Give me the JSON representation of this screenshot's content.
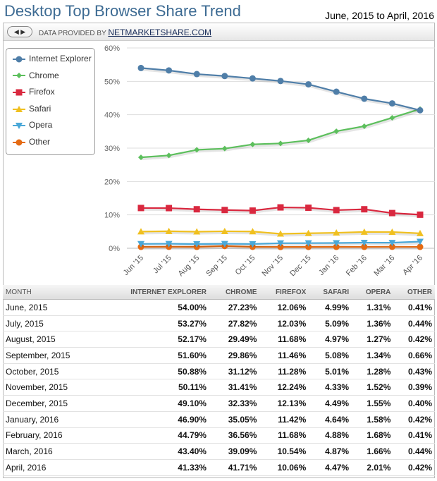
{
  "title": "Desktop Top Browser Share Trend",
  "range": "June, 2015 to April, 2016",
  "provided_by": "DATA PROVIDED BY",
  "provider": "NETMARKETSHARE.COM",
  "nav_icons": [
    "arrow-left-icon",
    "arrow-right-icon"
  ],
  "chart_data": {
    "type": "line",
    "categories": [
      "Jun '15",
      "Jul '15",
      "Aug '15",
      "Sep '15",
      "Oct '15",
      "Nov '15",
      "Dec '15",
      "Jan '16",
      "Feb '16",
      "Mar '16",
      "Apr '16"
    ],
    "ylim": [
      0,
      60
    ],
    "yticks": [
      "0%",
      "10%",
      "20%",
      "30%",
      "40%",
      "50%",
      "60%"
    ],
    "grid": true,
    "legend": "top-left",
    "series": [
      {
        "name": "Internet Explorer",
        "color": "#4f7ea8",
        "marker": "circle",
        "values": [
          54.0,
          53.27,
          52.17,
          51.6,
          50.88,
          50.11,
          49.1,
          46.9,
          44.79,
          43.4,
          41.33
        ]
      },
      {
        "name": "Chrome",
        "color": "#5cbf5c",
        "marker": "diamond",
        "values": [
          27.23,
          27.82,
          29.49,
          29.86,
          31.12,
          31.41,
          32.33,
          35.05,
          36.56,
          39.09,
          41.71
        ]
      },
      {
        "name": "Firefox",
        "color": "#d9283f",
        "marker": "square",
        "values": [
          12.06,
          12.03,
          11.68,
          11.46,
          11.28,
          12.24,
          12.13,
          11.42,
          11.68,
          10.54,
          10.06
        ]
      },
      {
        "name": "Safari",
        "color": "#f0c020",
        "marker": "triangle",
        "values": [
          4.99,
          5.09,
          4.97,
          5.08,
          5.01,
          4.33,
          4.49,
          4.64,
          4.88,
          4.87,
          4.47
        ]
      },
      {
        "name": "Opera",
        "color": "#4aa8d8",
        "marker": "triangle-down",
        "values": [
          1.31,
          1.36,
          1.27,
          1.34,
          1.28,
          1.52,
          1.55,
          1.58,
          1.68,
          1.66,
          2.01
        ]
      },
      {
        "name": "Other",
        "color": "#e46a12",
        "marker": "circle",
        "values": [
          0.41,
          0.44,
          0.42,
          0.66,
          0.43,
          0.39,
          0.4,
          0.42,
          0.41,
          0.44,
          0.42
        ]
      }
    ]
  },
  "table": {
    "headers": [
      "MONTH",
      "INTERNET EXPLORER",
      "CHROME",
      "FIREFOX",
      "SAFARI",
      "OPERA",
      "OTHER"
    ],
    "rows": [
      [
        "June, 2015",
        "54.00%",
        "27.23%",
        "12.06%",
        "4.99%",
        "1.31%",
        "0.41%"
      ],
      [
        "July, 2015",
        "53.27%",
        "27.82%",
        "12.03%",
        "5.09%",
        "1.36%",
        "0.44%"
      ],
      [
        "August, 2015",
        "52.17%",
        "29.49%",
        "11.68%",
        "4.97%",
        "1.27%",
        "0.42%"
      ],
      [
        "September, 2015",
        "51.60%",
        "29.86%",
        "11.46%",
        "5.08%",
        "1.34%",
        "0.66%"
      ],
      [
        "October, 2015",
        "50.88%",
        "31.12%",
        "11.28%",
        "5.01%",
        "1.28%",
        "0.43%"
      ],
      [
        "November, 2015",
        "50.11%",
        "31.41%",
        "12.24%",
        "4.33%",
        "1.52%",
        "0.39%"
      ],
      [
        "December, 2015",
        "49.10%",
        "32.33%",
        "12.13%",
        "4.49%",
        "1.55%",
        "0.40%"
      ],
      [
        "January, 2016",
        "46.90%",
        "35.05%",
        "11.42%",
        "4.64%",
        "1.58%",
        "0.42%"
      ],
      [
        "February, 2016",
        "44.79%",
        "36.56%",
        "11.68%",
        "4.88%",
        "1.68%",
        "0.41%"
      ],
      [
        "March, 2016",
        "43.40%",
        "39.09%",
        "10.54%",
        "4.87%",
        "1.66%",
        "0.44%"
      ],
      [
        "April, 2016",
        "41.33%",
        "41.71%",
        "10.06%",
        "4.47%",
        "2.01%",
        "0.42%"
      ]
    ]
  }
}
